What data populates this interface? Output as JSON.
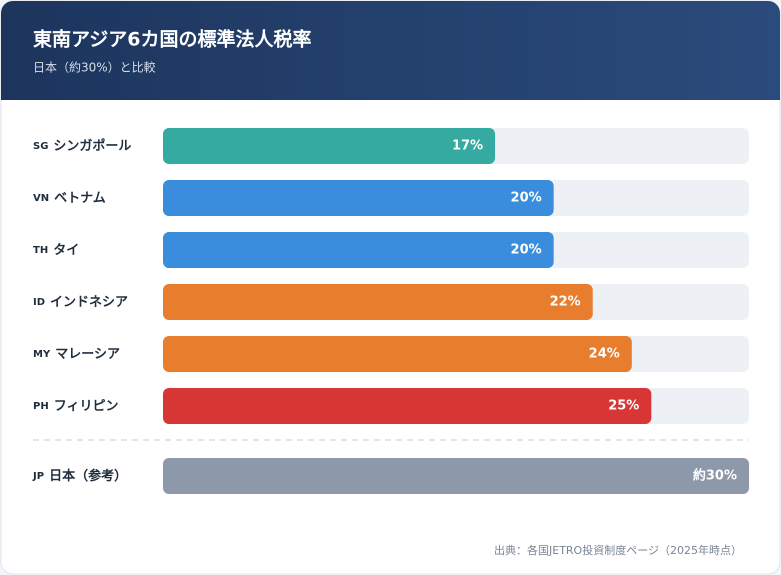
{
  "chart_data": {
    "type": "bar",
    "title": "東南アジア6カ国の標準法人税率",
    "subtitle": "日本（約30%）と比較",
    "codes": [
      "SG",
      "VN",
      "TH",
      "ID",
      "MY",
      "PH"
    ],
    "categories": [
      "シンガポール",
      "ベトナム",
      "タイ",
      "インドネシア",
      "マレーシア",
      "フィリピン"
    ],
    "values": [
      17,
      20,
      20,
      22,
      24,
      25
    ],
    "value_labels": [
      "17%",
      "20%",
      "20%",
      "22%",
      "24%",
      "25%"
    ],
    "colors": [
      "#35aaa0",
      "#3a8ddc",
      "#3a8ddc",
      "#e87d2e",
      "#e87d2e",
      "#d83535"
    ],
    "xlim": [
      0,
      30
    ],
    "reference": {
      "code": "JP",
      "name": "日本（参考）",
      "value": 30,
      "value_label": "約30%",
      "color": "#8d98ab"
    },
    "source": "出典：各国JETRO投資制度ページ（2025年時点）"
  }
}
